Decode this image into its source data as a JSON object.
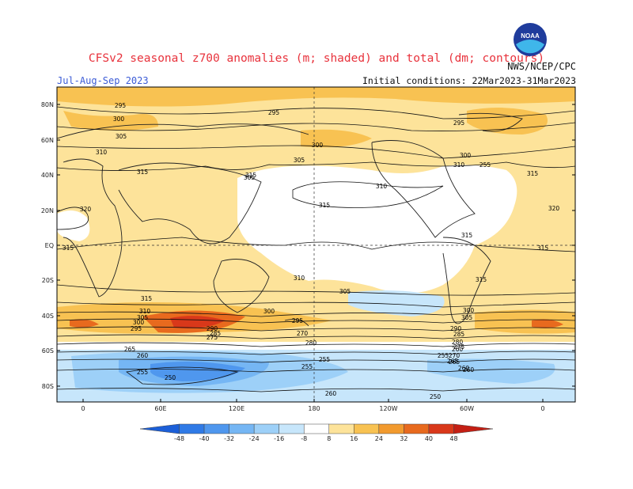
{
  "title": "CFSv2 seasonal z700 anomalies (m; shaded) and total (dm; contours)",
  "season": "Jul-Aug-Sep 2023",
  "initial_conditions": "Initial conditions: 22Mar2023-31Mar2023",
  "agency": "NWS/NCEP/CPC",
  "logo_text": "NOAA",
  "lat_labels": [
    "80N",
    "60N",
    "40N",
    "20N",
    "EQ",
    "20S",
    "40S",
    "60S",
    "80S"
  ],
  "lon_labels": [
    "0",
    "60E",
    "120E",
    "180",
    "120W",
    "60W",
    "0"
  ],
  "colorbar": {
    "values": [
      "-48",
      "-40",
      "-32",
      "-24",
      "-16",
      "-8",
      "8",
      "16",
      "24",
      "32",
      "40",
      "48"
    ],
    "colors": [
      "#1c5fd8",
      "#2f7ae6",
      "#4f97ee",
      "#75b6f4",
      "#9dd0f8",
      "#c7e6fb",
      "#ffffff",
      "#fde39a",
      "#f8c252",
      "#f29a2e",
      "#e86a1e",
      "#d9381a",
      "#c41f14"
    ]
  },
  "contour_labels": [
    "295",
    "295",
    "300",
    "305",
    "310",
    "315",
    "320",
    "305",
    "300",
    "295",
    "315",
    "310",
    "300",
    "305",
    "310",
    "315",
    "320",
    "315",
    "315",
    "315",
    "315",
    "315",
    "310",
    "305",
    "300",
    "295",
    "310",
    "315",
    "305",
    "300",
    "295",
    "290",
    "285",
    "280",
    "275",
    "270",
    "265",
    "260",
    "255",
    "250",
    "255",
    "260",
    "255",
    "260",
    "255",
    "250",
    "265",
    "260",
    "305",
    "300",
    "290",
    "285",
    "280",
    "275",
    "270",
    "265",
    "260",
    "255"
  ]
}
